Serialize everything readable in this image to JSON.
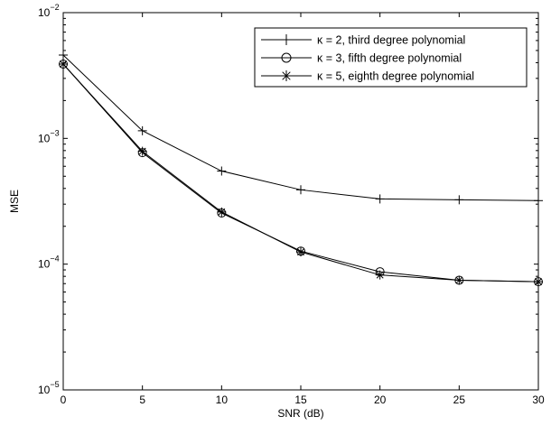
{
  "chart_data": {
    "type": "line",
    "title": "",
    "xlabel": "SNR (dB)",
    "ylabel": "MSE",
    "x": [
      0,
      5,
      10,
      15,
      20,
      25,
      30
    ],
    "xlim": [
      0,
      30
    ],
    "ylim": [
      1e-05,
      0.01
    ],
    "yscale": "log",
    "x_ticks": [
      "0",
      "5",
      "10",
      "15",
      "20",
      "25",
      "30"
    ],
    "y_ticks": [
      {
        "value": 0.01,
        "base": "10",
        "exp": "−2"
      },
      {
        "value": 0.001,
        "base": "10",
        "exp": "−3"
      },
      {
        "value": 0.0001,
        "base": "10",
        "exp": "−4"
      },
      {
        "value": 1e-05,
        "base": "10",
        "exp": "−5"
      }
    ],
    "grid": false,
    "legend_position": "top-right",
    "series": [
      {
        "name": "κ = 2, third degree polynomial",
        "marker": "plus",
        "values": [
          0.0046,
          0.00115,
          0.00055,
          0.00039,
          0.00033,
          0.000325,
          0.00032
        ]
      },
      {
        "name": "κ = 3, fifth degree polynomial",
        "marker": "circle",
        "values": [
          0.0039,
          0.00077,
          0.000255,
          0.000127,
          8.7e-05,
          7.45e-05,
          7.25e-05
        ]
      },
      {
        "name": "κ = 5, eighth degree polynomial",
        "marker": "star",
        "values": [
          0.0039,
          0.00079,
          0.00026,
          0.000125,
          8.2e-05,
          7.45e-05,
          7.25e-05
        ]
      }
    ],
    "colors": {
      "line": "#000000",
      "background": "#ffffff"
    }
  }
}
